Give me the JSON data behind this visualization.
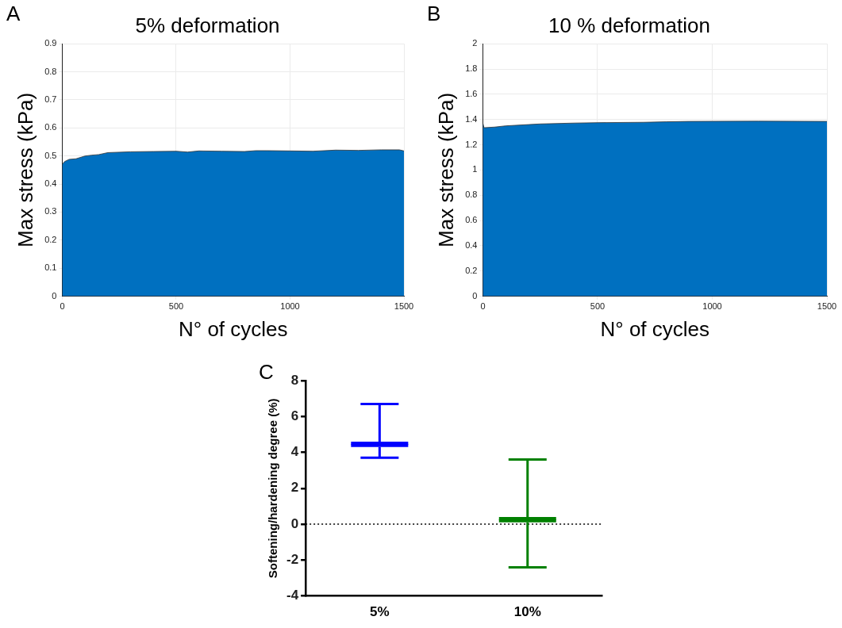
{
  "chart_data": [
    {
      "type": "area",
      "title": "5% deformation",
      "xlabel": "N° of cycles",
      "ylabel": "Max stress (kPa)",
      "annotations": [
        "A"
      ],
      "x": [
        0,
        10,
        30,
        60,
        100,
        130,
        160,
        200,
        300,
        400,
        500,
        550,
        600,
        700,
        800,
        850,
        900,
        1000,
        1100,
        1200,
        1300,
        1400,
        1480,
        1500
      ],
      "series": [
        {
          "color": "#0070c0",
          "values": [
            0.47,
            0.48,
            0.488,
            0.49,
            0.5,
            0.503,
            0.505,
            0.512,
            0.515,
            0.516,
            0.517,
            0.514,
            0.518,
            0.517,
            0.516,
            0.519,
            0.519,
            0.518,
            0.517,
            0.521,
            0.52,
            0.522,
            0.522,
            0.518
          ]
        }
      ],
      "xlim": [
        0,
        1500
      ],
      "xticks": [
        0,
        500,
        1000,
        1500
      ],
      "ylim": [
        0,
        0.9
      ],
      "yticks": [
        0,
        0.1,
        0.2,
        0.3,
        0.4,
        0.5,
        0.6,
        0.7,
        0.8,
        0.9
      ],
      "grid": true,
      "legend": false
    },
    {
      "type": "area",
      "title": "10 % deformation",
      "xlabel": "N° of cycles",
      "ylabel": "Max stress (kPa)",
      "annotations": [
        "B"
      ],
      "x": [
        0,
        5,
        50,
        100,
        200,
        250,
        400,
        500,
        700,
        800,
        900,
        1000,
        1200,
        1400,
        1500
      ],
      "series": [
        {
          "color": "#0070c0",
          "values": [
            1.37,
            1.335,
            1.34,
            1.35,
            1.36,
            1.365,
            1.372,
            1.375,
            1.378,
            1.382,
            1.385,
            1.386,
            1.387,
            1.386,
            1.385
          ]
        }
      ],
      "xlim": [
        0,
        1500
      ],
      "xticks": [
        0,
        500,
        1000,
        1500
      ],
      "ylim": [
        0,
        2
      ],
      "yticks": [
        0,
        0.2,
        0.4,
        0.6,
        0.8,
        1,
        1.2,
        1.4,
        1.6,
        1.8,
        2
      ],
      "grid": true,
      "legend": false
    },
    {
      "type": "box",
      "ylabel": "Softening/hardening degree (%)",
      "annotations": [
        "C"
      ],
      "categories": [
        "5%",
        "10%"
      ],
      "boxes": [
        {
          "low": 3.7,
          "q1": 4.3,
          "median": 4.45,
          "q3": 4.6,
          "high": 6.7
        },
        {
          "low": -2.4,
          "q1": 0.1,
          "median": 0.25,
          "q3": 0.4,
          "high": 3.6
        }
      ],
      "colors": [
        "#0000ff",
        "#008000"
      ],
      "ylim": [
        -4,
        8
      ],
      "yticks": [
        -4,
        -2,
        0,
        2,
        4,
        6,
        8
      ],
      "grid": false,
      "legend": false,
      "ref_lines": [
        {
          "axis": "y",
          "value": 0,
          "color": "#000000",
          "line_style": "dotted"
        }
      ]
    }
  ]
}
